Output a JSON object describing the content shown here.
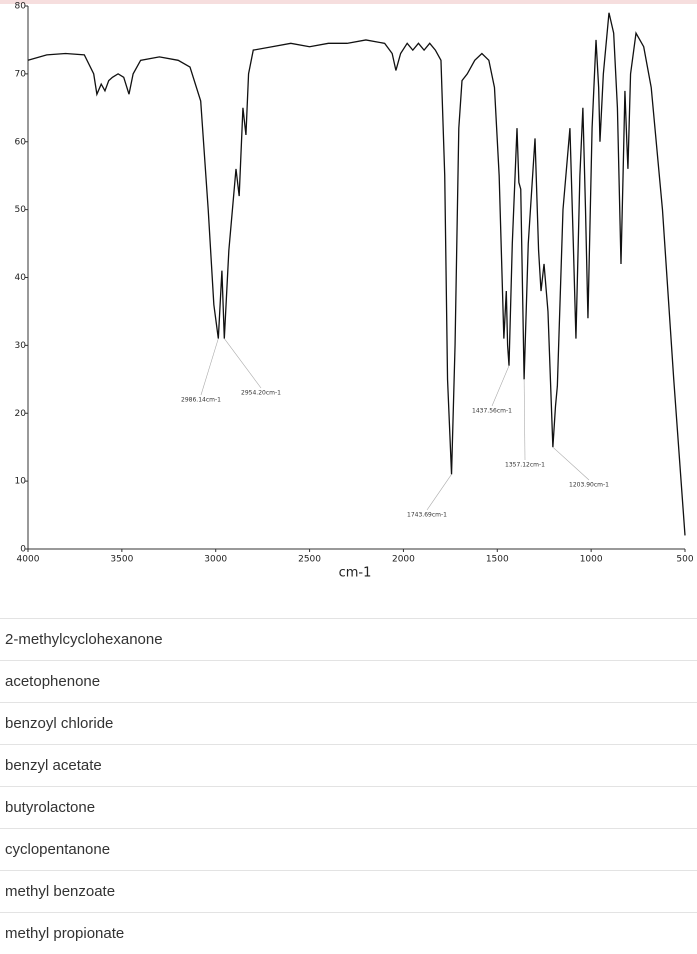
{
  "chart_data": {
    "type": "line",
    "x_label": "cm-1",
    "color": "#111111",
    "x": [
      4000,
      3900,
      3800,
      3700,
      3650,
      3633,
      3610,
      3590,
      3570,
      3550,
      3520,
      3490,
      3462,
      3440,
      3400,
      3300,
      3200,
      3137,
      3080,
      3040,
      3010,
      2986.14,
      2967,
      2954.2,
      2930,
      2892,
      2875,
      2855,
      2839,
      2825,
      2800,
      2700,
      2600,
      2500,
      2400,
      2300,
      2200,
      2100,
      2060,
      2040,
      2015,
      1980,
      1950,
      1920,
      1890,
      1860,
      1830,
      1800,
      1780,
      1765,
      1743.69,
      1725,
      1705,
      1688,
      1660,
      1620,
      1582,
      1545,
      1515,
      1490,
      1465,
      1452,
      1445,
      1437.56,
      1420,
      1395,
      1385,
      1375,
      1357.12,
      1335,
      1299,
      1280,
      1267,
      1251,
      1230,
      1203.9,
      1190,
      1180,
      1150,
      1113,
      1095,
      1081,
      1060,
      1044,
      1030,
      1017,
      995,
      974,
      960,
      953,
      935,
      905,
      880,
      860,
      841,
      830,
      820,
      810,
      804,
      790,
      761,
      720,
      680,
      620,
      560,
      500
    ],
    "values": [
      72,
      72.8,
      73,
      72.8,
      70,
      67,
      68.5,
      67.5,
      69,
      69.5,
      70,
      69.5,
      67,
      70,
      72,
      72.5,
      72,
      71,
      66,
      50,
      36,
      31,
      41,
      31,
      44,
      56,
      52,
      65,
      61,
      70,
      73.5,
      74,
      74.5,
      74,
      74.5,
      74.5,
      75,
      74.5,
      73,
      70.5,
      73,
      74.5,
      73.5,
      74.5,
      73.5,
      74.5,
      73.5,
      72,
      55,
      25,
      11,
      30,
      62,
      69,
      70,
      72,
      73,
      72,
      68,
      55,
      31,
      38,
      30,
      27,
      45,
      62,
      54,
      53,
      25,
      45,
      60.5,
      44,
      38,
      42,
      35,
      15,
      21,
      24,
      50,
      62,
      45,
      31,
      55,
      65,
      50,
      34,
      62,
      75,
      68,
      60,
      70,
      79,
      76,
      65,
      42,
      55,
      67.5,
      60,
      56,
      70,
      76,
      74,
      68,
      50,
      25,
      2
    ],
    "xlim": [
      4000,
      500
    ],
    "xticks": [
      4000,
      3500,
      3000,
      2500,
      2000,
      1500,
      1000,
      500
    ],
    "ylim": [
      0,
      80
    ],
    "yticks": [
      0,
      10,
      20,
      30,
      40,
      50,
      60,
      70,
      80
    ],
    "annotations": [
      {
        "text": "2986.14cm-1",
        "x": 2986.14
      },
      {
        "text": "2954.20cm-1",
        "x": 2954.2
      },
      {
        "text": "1743.69cm-1",
        "x": 1743.69
      },
      {
        "text": "1437.56cm-1",
        "x": 1437.56
      },
      {
        "text": "1357.12cm-1",
        "x": 1357.12
      },
      {
        "text": "1203.90cm-1",
        "x": 1203.9
      }
    ]
  },
  "options": [
    "2-methylcyclohexanone",
    "acetophenone",
    "benzoyl chloride",
    "benzyl acetate",
    "butyrolactone",
    "cyclopentanone",
    "methyl benzoate",
    "methyl propionate"
  ]
}
